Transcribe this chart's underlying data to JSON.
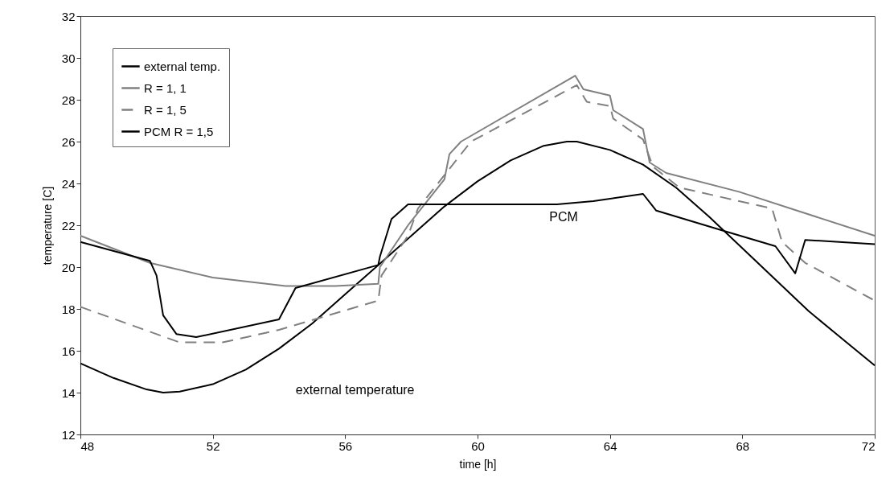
{
  "chart_data": {
    "type": "line",
    "xlabel": "time [h]",
    "ylabel": "temperature [C]",
    "xlim": [
      48,
      72
    ],
    "xticks": [
      48,
      52,
      56,
      60,
      64,
      68,
      72
    ],
    "ylim": [
      12,
      32
    ],
    "yticks": [
      12,
      14,
      16,
      18,
      20,
      22,
      24,
      26,
      28,
      30,
      32
    ],
    "grid": false,
    "legend": "top left",
    "annotations": [
      "external temperature",
      "PCM"
    ],
    "series": [
      {
        "name": "external temp.",
        "color": "#000000",
        "line_style": "solid",
        "x": [
          48,
          49,
          50,
          50.5,
          51,
          52,
          53,
          54,
          55,
          56,
          57,
          58,
          59,
          60,
          61,
          62,
          62.7,
          63,
          64,
          65,
          66,
          67,
          68,
          69,
          70,
          71,
          72
        ],
        "values": [
          15.4,
          14.7,
          14.15,
          14.0,
          14.05,
          14.4,
          15.1,
          16.1,
          17.3,
          18.7,
          20.1,
          21.5,
          22.9,
          24.1,
          25.1,
          25.8,
          26.0,
          26.0,
          25.6,
          24.9,
          23.8,
          22.4,
          20.9,
          19.4,
          17.9,
          16.6,
          15.3
        ]
      },
      {
        "name": "R = 1, 1",
        "color": "#808080",
        "line_style": "solid",
        "x": [
          48,
          50.1,
          52,
          54.2,
          55.7,
          57.0,
          57.05,
          57.9,
          59.0,
          59.15,
          59.5,
          62.95,
          63.2,
          64.0,
          64.1,
          65.0,
          65.2,
          65.7,
          67.9,
          72
        ],
        "values": [
          21.5,
          20.2,
          19.5,
          19.1,
          19.1,
          19.2,
          20.0,
          22.0,
          24.2,
          25.4,
          26.0,
          29.15,
          28.5,
          28.2,
          27.5,
          26.6,
          25.0,
          24.5,
          23.6,
          21.5
        ]
      },
      {
        "name": "R = 1, 5",
        "color": "#808080",
        "line_style": "dashed",
        "x": [
          48,
          51,
          52.3,
          54,
          57.0,
          57.1,
          57.9,
          58.2,
          59.15,
          59.8,
          63.0,
          63.3,
          64.0,
          64.1,
          65.0,
          65.3,
          66.1,
          68.9,
          69.2,
          69.9,
          72
        ],
        "values": [
          18.1,
          16.4,
          16.4,
          17.0,
          18.4,
          19.6,
          21.5,
          22.8,
          24.7,
          26.0,
          28.7,
          27.9,
          27.7,
          27.1,
          26.1,
          24.8,
          23.8,
          22.8,
          21.2,
          20.2,
          18.4
        ]
      },
      {
        "name": "PCM R = 1,5",
        "color": "#000000",
        "line_style": "solid",
        "x": [
          48,
          50.1,
          50.3,
          50.5,
          50.9,
          51.5,
          54,
          54.5,
          57.0,
          57.05,
          57.4,
          57.9,
          62.4,
          63.5,
          65.0,
          65.4,
          67.3,
          69.0,
          69.6,
          69.9,
          72
        ],
        "values": [
          21.2,
          20.3,
          19.6,
          17.7,
          16.8,
          16.65,
          17.5,
          19.0,
          20.1,
          20.5,
          22.3,
          23.0,
          23.0,
          23.15,
          23.5,
          22.7,
          21.8,
          21.0,
          19.7,
          21.3,
          21.1
        ]
      }
    ]
  }
}
